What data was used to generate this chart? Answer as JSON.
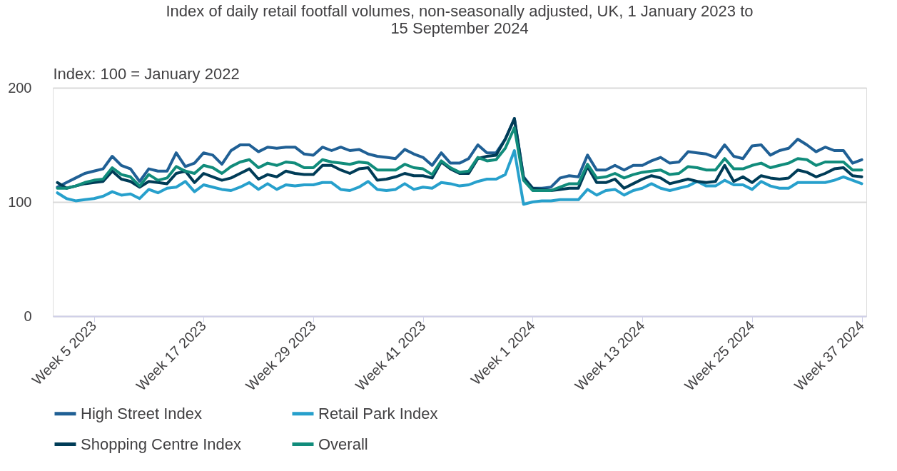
{
  "chart_data": {
    "type": "line",
    "title": "Index of daily retail footfall volumes, non-seasonally adjusted, UK, 1 January 2023 to 15 September 2024",
    "ylabel": "Index: 100 = January 2022",
    "categories": [
      null,
      null,
      null,
      null,
      "Week 5 2023",
      null,
      null,
      null,
      null,
      null,
      null,
      null,
      null,
      null,
      null,
      null,
      "Week 17 2023",
      null,
      null,
      null,
      null,
      null,
      null,
      null,
      null,
      null,
      null,
      null,
      "Week 29 2023",
      null,
      null,
      null,
      null,
      null,
      null,
      null,
      null,
      null,
      null,
      null,
      "Week 41 2023",
      null,
      null,
      null,
      null,
      null,
      null,
      null,
      null,
      null,
      null,
      null,
      "Week 1 2024",
      null,
      null,
      null,
      null,
      null,
      null,
      null,
      null,
      null,
      null,
      null,
      "Week 13 2024",
      null,
      null,
      null,
      null,
      null,
      null,
      null,
      null,
      null,
      null,
      null,
      "Week 25 2024",
      null,
      null,
      null,
      null,
      null,
      null,
      null,
      null,
      null,
      null,
      null,
      "Week 37 2024"
    ],
    "series": [
      {
        "name": "High Street Index",
        "color": "#206095",
        "values": [
          113,
          117,
          121,
          125,
          127,
          129,
          140,
          132,
          129,
          118,
          129,
          127,
          127,
          143,
          131,
          134,
          143,
          141,
          133,
          145,
          150,
          150,
          144,
          148,
          147,
          148,
          148,
          142,
          141,
          148,
          145,
          148,
          145,
          146,
          142,
          140,
          139,
          138,
          146,
          142,
          139,
          132,
          143,
          134,
          134,
          138,
          150,
          143,
          143,
          155,
          173,
          122,
          112,
          112,
          113,
          121,
          123,
          122,
          141,
          128,
          128,
          132,
          128,
          132,
          132,
          136,
          139,
          134,
          135,
          144,
          143,
          142,
          139,
          150,
          140,
          138,
          149,
          150,
          141,
          145,
          147,
          155,
          150,
          144,
          148,
          145,
          145,
          134,
          137
        ]
      },
      {
        "name": "Retail Park Index",
        "color": "#27a0cc",
        "values": [
          108,
          103,
          101,
          102,
          103,
          105,
          109,
          106,
          107,
          103,
          111,
          108,
          112,
          113,
          118,
          109,
          115,
          113,
          111,
          110,
          113,
          117,
          111,
          116,
          111,
          115,
          114,
          115,
          115,
          117,
          117,
          111,
          110,
          113,
          118,
          111,
          110,
          111,
          116,
          111,
          113,
          112,
          117,
          116,
          114,
          115,
          118,
          120,
          120,
          124,
          145,
          98,
          100,
          101,
          101,
          102,
          102,
          102,
          111,
          106,
          110,
          111,
          106,
          110,
          112,
          116,
          112,
          110,
          112,
          114,
          118,
          114,
          114,
          119,
          115,
          115,
          111,
          118,
          114,
          112,
          112,
          117,
          117,
          117,
          117,
          119,
          122,
          119,
          116
        ]
      },
      {
        "name": "Shopping Centre Index",
        "color": "#003c57",
        "values": [
          117,
          112,
          114,
          116,
          117,
          118,
          127,
          120,
          118,
          113,
          118,
          117,
          116,
          125,
          127,
          117,
          125,
          122,
          119,
          121,
          125,
          129,
          120,
          124,
          122,
          127,
          125,
          124,
          124,
          132,
          132,
          128,
          125,
          129,
          130,
          119,
          120,
          122,
          125,
          123,
          123,
          121,
          135,
          129,
          125,
          125,
          138,
          140,
          141,
          155,
          173,
          121,
          112,
          111,
          110,
          111,
          112,
          112,
          131,
          117,
          117,
          120,
          112,
          116,
          120,
          123,
          121,
          116,
          118,
          120,
          118,
          117,
          118,
          132,
          118,
          122,
          117,
          123,
          121,
          120,
          121,
          128,
          126,
          122,
          125,
          129,
          130,
          123,
          122
        ]
      },
      {
        "name": "Overall",
        "color": "#118c7b",
        "values": [
          112,
          112,
          114,
          117,
          119,
          120,
          130,
          124,
          122,
          114,
          124,
          119,
          121,
          131,
          127,
          125,
          132,
          130,
          125,
          131,
          135,
          137,
          130,
          134,
          132,
          135,
          134,
          130,
          130,
          137,
          135,
          134,
          133,
          135,
          134,
          128,
          128,
          128,
          133,
          130,
          129,
          124,
          136,
          130,
          126,
          127,
          139,
          136,
          137,
          147,
          165,
          119,
          110,
          110,
          110,
          113,
          116,
          116,
          133,
          121,
          122,
          125,
          121,
          124,
          126,
          127,
          128,
          124,
          125,
          131,
          130,
          128,
          128,
          138,
          129,
          129,
          132,
          134,
          130,
          132,
          134,
          138,
          137,
          132,
          135,
          135,
          135,
          128,
          128
        ]
      }
    ],
    "ylim": [
      0,
      200
    ],
    "yticks": [
      0,
      100,
      200
    ],
    "grid": "y",
    "legend": "bottom",
    "marker": "none",
    "line_style": "solid"
  }
}
